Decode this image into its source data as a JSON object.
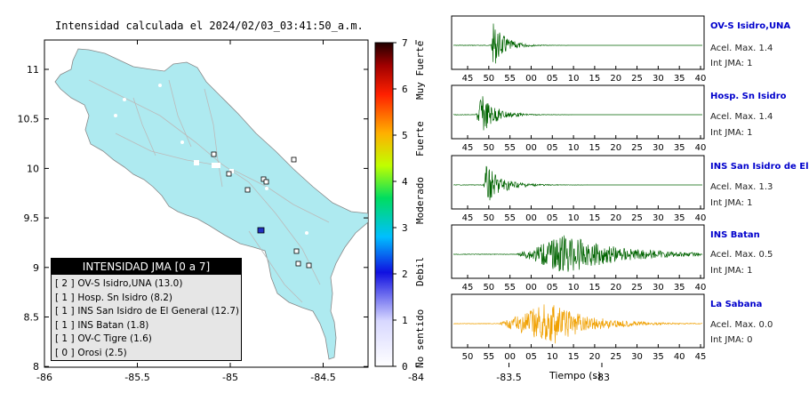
{
  "map": {
    "title": "Intensidad calculada el 2024/02/03_03:41:50_a.m.",
    "x_ticks": [
      "-86",
      "-85.5",
      "-85",
      "-84.5",
      "-84",
      "-83.5",
      "-83"
    ],
    "y_ticks": [
      "11",
      "10.5",
      "10",
      "9.5",
      "9",
      "8.5",
      "8"
    ],
    "land_color": "#aeeaf0"
  },
  "colorbar": {
    "ticks": [
      "0",
      "1",
      "2",
      "3",
      "4",
      "5",
      "6",
      "7"
    ],
    "labels": [
      "No sentido",
      "Debil",
      "Moderado",
      "Fuerte",
      "Muy Fuerte"
    ]
  },
  "legend": {
    "title": "INTENSIDAD JMA [0 a 7]",
    "rows": [
      {
        "level": "[ 2 ]",
        "text": "OV-S Isidro,UNA (13.0)"
      },
      {
        "level": "[ 1 ]",
        "text": "Hosp. Sn Isidro (8.2)"
      },
      {
        "level": "[ 1 ]",
        "text": "INS San Isidro de El General (12.7)"
      },
      {
        "level": "[ 1 ]",
        "text": "INS Batan (1.8)"
      },
      {
        "level": "[ 1 ]",
        "text": "OV-C Tigre (1.6)"
      },
      {
        "level": "[ 0 ]",
        "text": "Orosi (2.5)"
      }
    ]
  },
  "stations": [
    {
      "name": "OV-S Isidro,UNA",
      "acel": "Acel. Max. 1.4",
      "int": "Int JMA: 1",
      "color": "#006400",
      "ticks": [
        "45",
        "50",
        "55",
        "00",
        "05",
        "10",
        "15",
        "20",
        "25",
        "30",
        "35",
        "40"
      ]
    },
    {
      "name": "Hosp. Sn Isidro",
      "acel": "Acel. Max. 1.4",
      "int": "Int JMA: 1",
      "color": "#006400",
      "ticks": [
        "45",
        "50",
        "55",
        "00",
        "05",
        "10",
        "15",
        "20",
        "25",
        "30",
        "35",
        "40"
      ]
    },
    {
      "name": "INS San Isidro de El Ge",
      "acel": "Acel. Max. 1.3",
      "int": "Int JMA: 1",
      "color": "#006400",
      "ticks": [
        "45",
        "50",
        "55",
        "00",
        "05",
        "10",
        "15",
        "20",
        "25",
        "30",
        "35",
        "40"
      ]
    },
    {
      "name": "INS Batan",
      "acel": "Acel. Max. 0.5",
      "int": "Int JMA: 1",
      "color": "#006400",
      "ticks": [
        "45",
        "50",
        "55",
        "00",
        "05",
        "10",
        "15",
        "20",
        "25",
        "30",
        "35",
        "40"
      ]
    },
    {
      "name": "La Sabana",
      "acel": "Acel. Max. 0.0",
      "int": "Int JMA: 0",
      "color": "#f0a000",
      "ticks": [
        "50",
        "55",
        "00",
        "05",
        "10",
        "15",
        "20",
        "25",
        "30",
        "35",
        "40",
        "45"
      ]
    }
  ],
  "xlabel": "Tiempo (s)"
}
